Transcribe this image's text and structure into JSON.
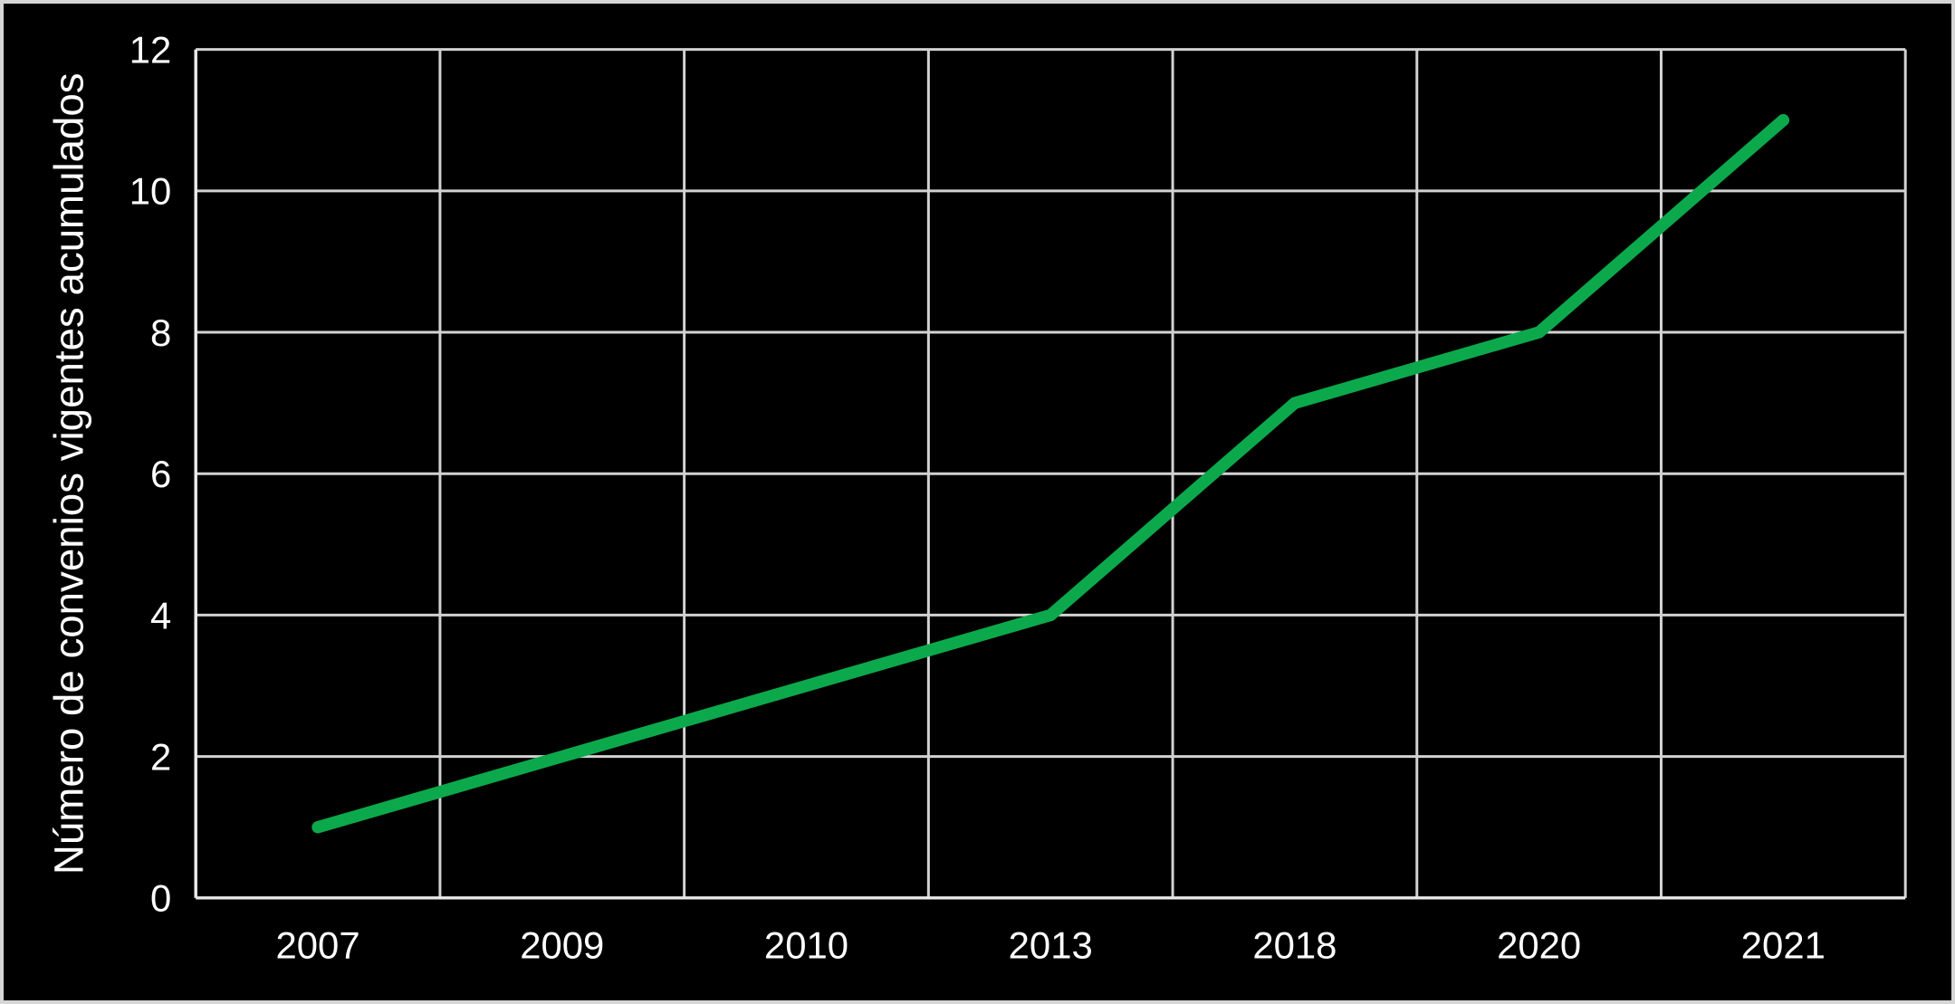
{
  "chart_data": {
    "type": "line",
    "categories": [
      "2007",
      "2009",
      "2010",
      "2013",
      "2018",
      "2020",
      "2021"
    ],
    "values": [
      1,
      2,
      3,
      4,
      7,
      8,
      11
    ],
    "title": "",
    "xlabel": "",
    "ylabel": "Número de convenios vigentes acumulados",
    "ylim": [
      0,
      12
    ],
    "yticks": [
      0,
      2,
      4,
      6,
      8,
      10,
      12
    ],
    "grid": true,
    "legend": false,
    "colors": {
      "line": "#0CA94C",
      "background": "#000000",
      "text": "#FFFFFF",
      "gridline": "#D2D2D2",
      "axis": "#E9E9E9",
      "frame_border": "#D6D6D6"
    }
  }
}
